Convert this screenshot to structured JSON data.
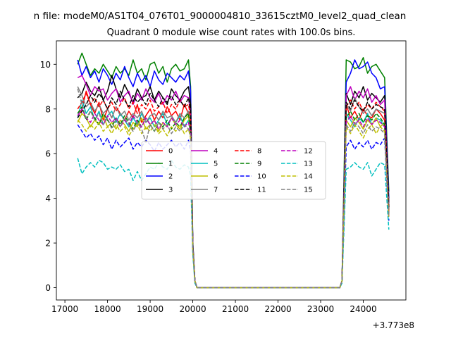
{
  "figure": {
    "suptitle": "n file: modeM0/AS1T04_076T01_9000004810_33615cztM0_level2_quad_clean",
    "offset_text": "+3.773e8"
  },
  "chart_data": {
    "type": "line",
    "title": "Quadrant 0 module wise count rates with 100.0s bins.",
    "xlabel": "",
    "ylabel": "",
    "xlim": [
      16800,
      25000
    ],
    "ylim": [
      -0.55,
      11.05
    ],
    "x_ticks": [
      17000,
      18000,
      19000,
      20000,
      21000,
      22000,
      23000,
      24000
    ],
    "y_ticks": [
      0,
      2,
      4,
      6,
      8,
      10
    ],
    "grid": false,
    "legend_position": "center",
    "legend_columns": 4,
    "x": [
      17300,
      17400,
      17500,
      17600,
      17700,
      17800,
      17900,
      18000,
      18100,
      18200,
      18300,
      18400,
      18500,
      18600,
      18700,
      18800,
      18900,
      19000,
      19100,
      19200,
      19300,
      19400,
      19500,
      19600,
      19700,
      19800,
      19900,
      19950,
      20000,
      20050,
      20100,
      20150,
      23450,
      23500,
      23600,
      23700,
      23800,
      23900,
      24000,
      24100,
      24200,
      24300,
      24400,
      24500,
      24600
    ],
    "series": [
      {
        "name": "0",
        "color": "#ff0000",
        "dash": "solid",
        "values": [
          7.7,
          8.0,
          8.8,
          8.2,
          7.8,
          8.3,
          7.5,
          8.0,
          7.6,
          8.1,
          7.8,
          7.5,
          7.9,
          7.6,
          8.2,
          7.4,
          7.7,
          8.0,
          7.5,
          7.9,
          7.6,
          8.1,
          7.7,
          7.9,
          7.5,
          8.2,
          7.8,
          7.0,
          2.0,
          0.3,
          0.0,
          0.0,
          0.0,
          0.3,
          8.2,
          7.6,
          7.9,
          7.5,
          8.0,
          7.7,
          7.6,
          8.0,
          7.8,
          7.5,
          3.3
        ]
      },
      {
        "name": "1",
        "color": "#008000",
        "dash": "solid",
        "values": [
          10.0,
          10.5,
          10.0,
          9.5,
          9.8,
          9.6,
          10.0,
          9.7,
          9.4,
          9.9,
          9.6,
          9.8,
          9.5,
          10.2,
          9.6,
          9.8,
          9.3,
          10.0,
          10.1,
          9.6,
          9.9,
          9.2,
          9.8,
          10.0,
          9.7,
          9.8,
          10.2,
          9.0,
          2.1,
          0.3,
          0.0,
          0.0,
          0.0,
          0.3,
          10.2,
          10.1,
          9.8,
          9.9,
          10.3,
          9.6,
          9.9,
          10.0,
          9.7,
          9.4,
          4.3
        ]
      },
      {
        "name": "2",
        "color": "#0000ff",
        "dash": "solid",
        "values": [
          10.2,
          9.5,
          9.9,
          9.4,
          9.7,
          9.2,
          9.8,
          9.5,
          9.1,
          9.6,
          9.3,
          9.9,
          9.4,
          9.0,
          9.6,
          9.2,
          9.5,
          9.0,
          9.7,
          9.3,
          9.1,
          9.6,
          9.4,
          9.2,
          9.5,
          9.3,
          9.7,
          8.8,
          2.0,
          0.3,
          0.0,
          0.0,
          0.0,
          0.3,
          9.2,
          9.6,
          10.2,
          9.8,
          9.9,
          10.1,
          9.6,
          9.4,
          8.9,
          9.0,
          4.0
        ]
      },
      {
        "name": "3",
        "color": "#000000",
        "dash": "solid",
        "values": [
          8.5,
          8.7,
          9.2,
          8.8,
          8.6,
          9.0,
          8.4,
          8.8,
          9.5,
          8.9,
          8.5,
          9.1,
          8.7,
          8.3,
          8.9,
          8.5,
          8.6,
          9.0,
          8.4,
          8.8,
          8.5,
          8.2,
          8.9,
          8.6,
          8.4,
          8.8,
          9.0,
          8.2,
          1.9,
          0.3,
          0.0,
          0.0,
          0.0,
          0.3,
          8.7,
          8.2,
          8.8,
          8.5,
          9.0,
          8.4,
          8.7,
          8.5,
          8.3,
          8.6,
          3.8
        ]
      },
      {
        "name": "4",
        "color": "#bf00bf",
        "dash": "solid",
        "values": [
          9.4,
          9.5,
          9.1,
          8.6,
          9.0,
          8.8,
          8.9,
          8.4,
          8.7,
          8.9,
          8.3,
          8.6,
          8.8,
          8.2,
          8.7,
          8.4,
          8.9,
          8.5,
          8.3,
          8.7,
          8.2,
          8.6,
          8.4,
          8.8,
          8.3,
          8.6,
          8.5,
          7.8,
          1.9,
          0.3,
          0.0,
          0.0,
          0.0,
          0.3,
          8.6,
          9.0,
          8.4,
          8.8,
          8.5,
          8.9,
          8.3,
          8.6,
          8.2,
          8.4,
          3.6
        ]
      },
      {
        "name": "5",
        "color": "#00bfbf",
        "dash": "solid",
        "values": [
          7.6,
          8.4,
          7.8,
          8.1,
          7.5,
          7.9,
          7.3,
          7.7,
          7.9,
          7.4,
          7.8,
          7.5,
          7.2,
          7.6,
          7.3,
          7.8,
          7.4,
          7.6,
          7.2,
          7.5,
          7.8,
          7.3,
          7.6,
          7.4,
          7.7,
          7.2,
          7.5,
          6.8,
          1.8,
          0.3,
          0.0,
          0.0,
          0.0,
          0.3,
          7.8,
          7.5,
          7.2,
          7.6,
          7.4,
          7.8,
          7.3,
          7.6,
          7.5,
          7.2,
          3.2
        ]
      },
      {
        "name": "6",
        "color": "#bfbf00",
        "dash": "solid",
        "values": [
          7.4,
          7.8,
          7.6,
          7.2,
          7.5,
          7.3,
          7.7,
          7.2,
          7.4,
          7.1,
          7.5,
          7.3,
          7.0,
          7.4,
          7.2,
          7.6,
          7.1,
          7.3,
          7.5,
          7.0,
          7.4,
          7.2,
          7.6,
          7.3,
          7.1,
          7.5,
          7.7,
          6.8,
          1.8,
          0.3,
          0.0,
          0.0,
          0.0,
          0.3,
          7.5,
          7.2,
          7.6,
          7.4,
          7.1,
          7.5,
          7.3,
          7.6,
          7.2,
          7.4,
          3.3
        ]
      },
      {
        "name": "7",
        "color": "#808080",
        "dash": "solid",
        "values": [
          9.0,
          8.6,
          8.1,
          8.3,
          7.9,
          8.2,
          7.8,
          8.0,
          7.6,
          8.1,
          7.7,
          7.9,
          7.5,
          7.8,
          7.6,
          7.9,
          7.4,
          7.7,
          7.8,
          7.5,
          7.9,
          7.6,
          7.7,
          7.4,
          7.8,
          7.6,
          7.9,
          7.2,
          1.8,
          0.3,
          0.0,
          0.0,
          0.0,
          0.3,
          8.2,
          7.9,
          8.5,
          8.1,
          7.8,
          8.0,
          7.7,
          8.0,
          7.9,
          7.8,
          3.5
        ]
      },
      {
        "name": "8",
        "color": "#ff0000",
        "dash": "dashed",
        "values": [
          8.0,
          8.3,
          8.7,
          8.2,
          8.5,
          8.1,
          8.4,
          8.0,
          8.3,
          7.9,
          8.2,
          8.5,
          8.0,
          8.3,
          7.8,
          8.2,
          8.0,
          8.4,
          7.9,
          8.1,
          8.3,
          7.8,
          8.2,
          8.0,
          8.4,
          8.1,
          8.2,
          7.6,
          1.9,
          0.3,
          0.0,
          0.0,
          0.0,
          0.3,
          8.1,
          8.4,
          8.0,
          8.3,
          7.9,
          8.2,
          8.0,
          8.3,
          8.1,
          7.9,
          3.4
        ]
      },
      {
        "name": "9",
        "color": "#008000",
        "dash": "dashed",
        "values": [
          7.8,
          8.1,
          7.5,
          7.9,
          7.6,
          7.3,
          7.8,
          7.5,
          7.2,
          7.6,
          7.3,
          7.7,
          7.4,
          7.1,
          7.5,
          7.2,
          7.6,
          7.3,
          7.0,
          7.4,
          7.2,
          7.5,
          7.1,
          7.4,
          7.2,
          7.6,
          7.8,
          7.0,
          1.8,
          0.3,
          0.0,
          0.0,
          0.0,
          0.3,
          7.6,
          7.9,
          7.5,
          7.8,
          7.4,
          7.7,
          7.5,
          7.8,
          7.6,
          7.3,
          3.3
        ]
      },
      {
        "name": "10",
        "color": "#0000ff",
        "dash": "dashed",
        "values": [
          7.3,
          7.0,
          6.7,
          6.9,
          6.6,
          6.8,
          6.4,
          6.7,
          6.2,
          6.6,
          6.3,
          6.5,
          6.7,
          6.2,
          6.5,
          6.3,
          6.6,
          6.4,
          6.1,
          6.5,
          6.2,
          6.4,
          6.6,
          6.3,
          6.5,
          6.2,
          6.6,
          6.1,
          1.7,
          0.3,
          0.0,
          0.0,
          0.0,
          0.3,
          6.3,
          6.6,
          6.2,
          6.5,
          6.3,
          6.6,
          6.2,
          6.5,
          6.4,
          6.7,
          3.0
        ]
      },
      {
        "name": "11",
        "color": "#000000",
        "dash": "dashed",
        "values": [
          7.6,
          7.9,
          8.2,
          8.6,
          8.3,
          8.7,
          8.4,
          8.0,
          8.5,
          8.2,
          8.8,
          8.4,
          8.1,
          8.6,
          8.3,
          8.5,
          8.2,
          8.7,
          8.4,
          8.1,
          8.5,
          8.3,
          8.6,
          8.2,
          8.4,
          8.1,
          8.5,
          7.9,
          1.9,
          0.3,
          0.0,
          0.0,
          0.0,
          0.3,
          8.3,
          8.0,
          8.4,
          8.1,
          7.9,
          8.3,
          8.0,
          8.2,
          8.1,
          8.0,
          3.6
        ]
      },
      {
        "name": "12",
        "color": "#bf00bf",
        "dash": "dashed",
        "values": [
          7.7,
          8.0,
          7.6,
          7.4,
          7.8,
          7.5,
          7.3,
          7.7,
          7.4,
          7.6,
          7.2,
          7.5,
          7.3,
          7.7,
          7.4,
          7.2,
          7.6,
          7.3,
          7.5,
          7.1,
          7.4,
          7.2,
          7.6,
          7.3,
          7.5,
          7.2,
          7.4,
          6.9,
          1.8,
          0.3,
          0.0,
          0.0,
          0.0,
          0.3,
          7.4,
          7.7,
          7.3,
          7.5,
          7.2,
          7.6,
          7.3,
          7.5,
          7.4,
          7.2,
          3.2
        ]
      },
      {
        "name": "13",
        "color": "#00bfbf",
        "dash": "dashed",
        "values": [
          5.8,
          5.1,
          5.4,
          5.6,
          5.4,
          5.7,
          5.6,
          5.3,
          5.4,
          5.3,
          5.5,
          5.2,
          5.3,
          4.8,
          5.2,
          4.8,
          5.1,
          5.4,
          5.3,
          5.6,
          5.4,
          5.3,
          5.7,
          5.4,
          5.3,
          5.5,
          5.4,
          5.0,
          1.5,
          0.2,
          0.0,
          0.0,
          0.0,
          0.2,
          5.3,
          5.4,
          5.6,
          5.4,
          5.3,
          5.6,
          5.0,
          5.3,
          5.6,
          5.5,
          2.6
        ]
      },
      {
        "name": "14",
        "color": "#bfbf00",
        "dash": "dashed",
        "values": [
          7.5,
          7.3,
          7.0,
          7.3,
          7.1,
          7.4,
          7.0,
          7.2,
          6.9,
          7.3,
          7.0,
          7.2,
          6.8,
          7.1,
          7.3,
          6.9,
          7.2,
          7.0,
          7.3,
          6.9,
          7.1,
          6.8,
          7.2,
          7.0,
          7.3,
          6.9,
          7.1,
          6.7,
          1.7,
          0.3,
          0.0,
          0.0,
          0.0,
          0.3,
          7.2,
          6.9,
          7.3,
          7.0,
          6.7,
          7.1,
          7.3,
          6.9,
          7.2,
          7.0,
          3.1
        ]
      },
      {
        "name": "15",
        "color": "#808080",
        "dash": "dashed",
        "values": [
          8.9,
          8.2,
          7.6,
          7.9,
          7.5,
          7.8,
          7.3,
          7.6,
          7.1,
          7.5,
          7.2,
          7.6,
          7.3,
          7.0,
          7.4,
          7.1,
          6.5,
          7.3,
          7.0,
          7.4,
          7.1,
          7.3,
          6.9,
          7.2,
          7.0,
          7.3,
          7.1,
          6.8,
          1.8,
          0.3,
          0.0,
          0.0,
          0.0,
          0.3,
          7.3,
          7.0,
          7.4,
          7.2,
          6.9,
          7.3,
          7.0,
          7.2,
          7.1,
          6.9,
          3.2
        ]
      }
    ]
  }
}
